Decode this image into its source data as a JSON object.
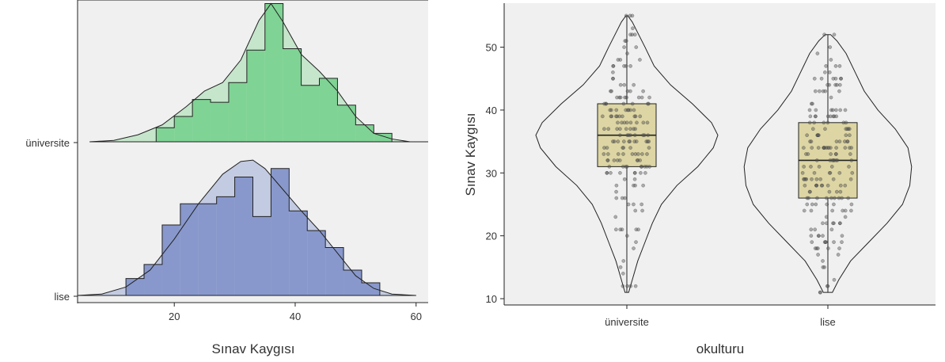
{
  "colors": {
    "panel_bg": "#f0f0f0",
    "universite_fill": "#7fd394",
    "universite_density": "#c6e6cc",
    "lise_fill": "#8898cc",
    "lise_density": "#c3cbe2",
    "box_fill": "#ddd5a3",
    "point": "#555555",
    "line": "#222222"
  },
  "chart_data": [
    {
      "type": "area",
      "subtype": "ridgeline-histogram-density",
      "xlabel": "Sınav Kaygısı",
      "ylabel": "",
      "x_ticks": [
        20,
        40,
        60
      ],
      "xlim": [
        4,
        62
      ],
      "categories": [
        "lise",
        "üniversite"
      ],
      "series": [
        {
          "name": "üniversite",
          "bin_edges": [
            14,
            17,
            20,
            23,
            26,
            29,
            32,
            35,
            38,
            41,
            44,
            47,
            50,
            53,
            56
          ],
          "bin_heights": [
            0.0,
            0.1,
            0.18,
            0.3,
            0.28,
            0.42,
            0.65,
            0.98,
            0.66,
            0.4,
            0.45,
            0.26,
            0.12,
            0.06
          ],
          "density_x": [
            6,
            10,
            14,
            18,
            22,
            25,
            28,
            31,
            34,
            36,
            38,
            41,
            44,
            47,
            50,
            53,
            56,
            59,
            62
          ],
          "density_y": [
            0.0,
            0.01,
            0.05,
            0.12,
            0.25,
            0.36,
            0.42,
            0.58,
            0.86,
            0.98,
            0.85,
            0.62,
            0.5,
            0.36,
            0.18,
            0.06,
            0.02,
            0.0,
            0.0
          ]
        },
        {
          "name": "lise",
          "bin_edges": [
            9,
            12,
            15,
            18,
            21,
            24,
            27,
            30,
            33,
            36,
            39,
            42,
            45,
            48,
            51,
            54
          ],
          "bin_heights": [
            0.0,
            0.12,
            0.22,
            0.5,
            0.65,
            0.65,
            0.7,
            0.84,
            0.56,
            0.9,
            0.6,
            0.46,
            0.34,
            0.18,
            0.09
          ],
          "density_x": [
            4,
            8,
            12,
            16,
            20,
            24,
            28,
            31,
            33,
            35,
            38,
            41,
            44,
            47,
            50,
            53,
            56,
            60
          ],
          "density_y": [
            0.0,
            0.01,
            0.06,
            0.18,
            0.4,
            0.65,
            0.86,
            0.95,
            0.96,
            0.9,
            0.75,
            0.6,
            0.46,
            0.3,
            0.14,
            0.05,
            0.01,
            0.0
          ]
        }
      ]
    },
    {
      "type": "scatter",
      "subtype": "violin-box-jitter",
      "xlabel": "okulturu",
      "ylabel": "Sınav Kaygısı",
      "categories": [
        "üniversite",
        "lise"
      ],
      "y_ticks": [
        10,
        20,
        30,
        40,
        50
      ],
      "ylim": [
        9,
        57
      ],
      "boxes": [
        {
          "name": "üniversite",
          "min": 11,
          "q1": 31,
          "median": 36,
          "q3": 41,
          "max": 55
        },
        {
          "name": "lise",
          "min": 11,
          "q1": 26,
          "median": 32,
          "q3": 38,
          "max": 52
        }
      ],
      "violins": [
        {
          "name": "üniversite",
          "y": [
            11,
            13,
            16,
            19,
            22,
            25,
            28,
            31,
            34,
            36,
            38,
            41,
            44,
            47,
            50,
            52,
            54,
            55
          ],
          "width": [
            0.02,
            0.06,
            0.12,
            0.2,
            0.28,
            0.38,
            0.55,
            0.78,
            0.95,
            1.0,
            0.93,
            0.72,
            0.48,
            0.3,
            0.2,
            0.13,
            0.06,
            0.01
          ]
        },
        {
          "name": "lise",
          "y": [
            11,
            13,
            16,
            19,
            22,
            25,
            28,
            31,
            34,
            37,
            40,
            43,
            46,
            49,
            51,
            52
          ],
          "width": [
            0.05,
            0.12,
            0.25,
            0.45,
            0.65,
            0.82,
            0.9,
            0.92,
            0.88,
            0.74,
            0.55,
            0.4,
            0.3,
            0.2,
            0.1,
            0.03
          ]
        }
      ],
      "points": [
        {
          "name": "üniversite",
          "n": 170
        },
        {
          "name": "lise",
          "n": 190
        }
      ]
    }
  ]
}
